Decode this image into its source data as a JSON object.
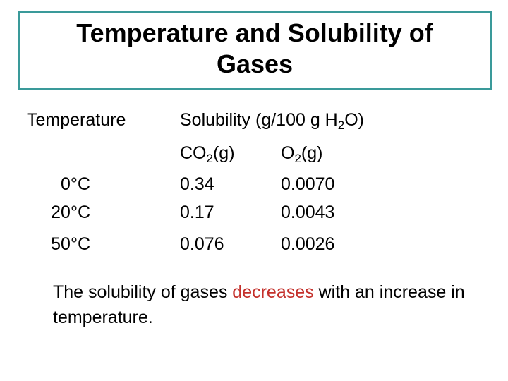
{
  "title": "Temperature and Solubility of Gases",
  "table": {
    "temperature_header": "Temperature",
    "solubility_header": [
      "Solubility (g/100 g H",
      "2",
      "O)"
    ],
    "gas_headers": [
      [
        "CO",
        "2",
        "(g)"
      ],
      [
        "O",
        "2",
        "(g)"
      ]
    ],
    "rows": [
      [
        "0°C",
        "0.34",
        "0.0070"
      ],
      [
        "20°C",
        "0.17",
        "0.0043"
      ],
      [
        "50°C",
        "0.076",
        "0.0026"
      ]
    ]
  },
  "note": [
    "The solubility of gases ",
    "decreases",
    " with an increase in temperature."
  ]
}
